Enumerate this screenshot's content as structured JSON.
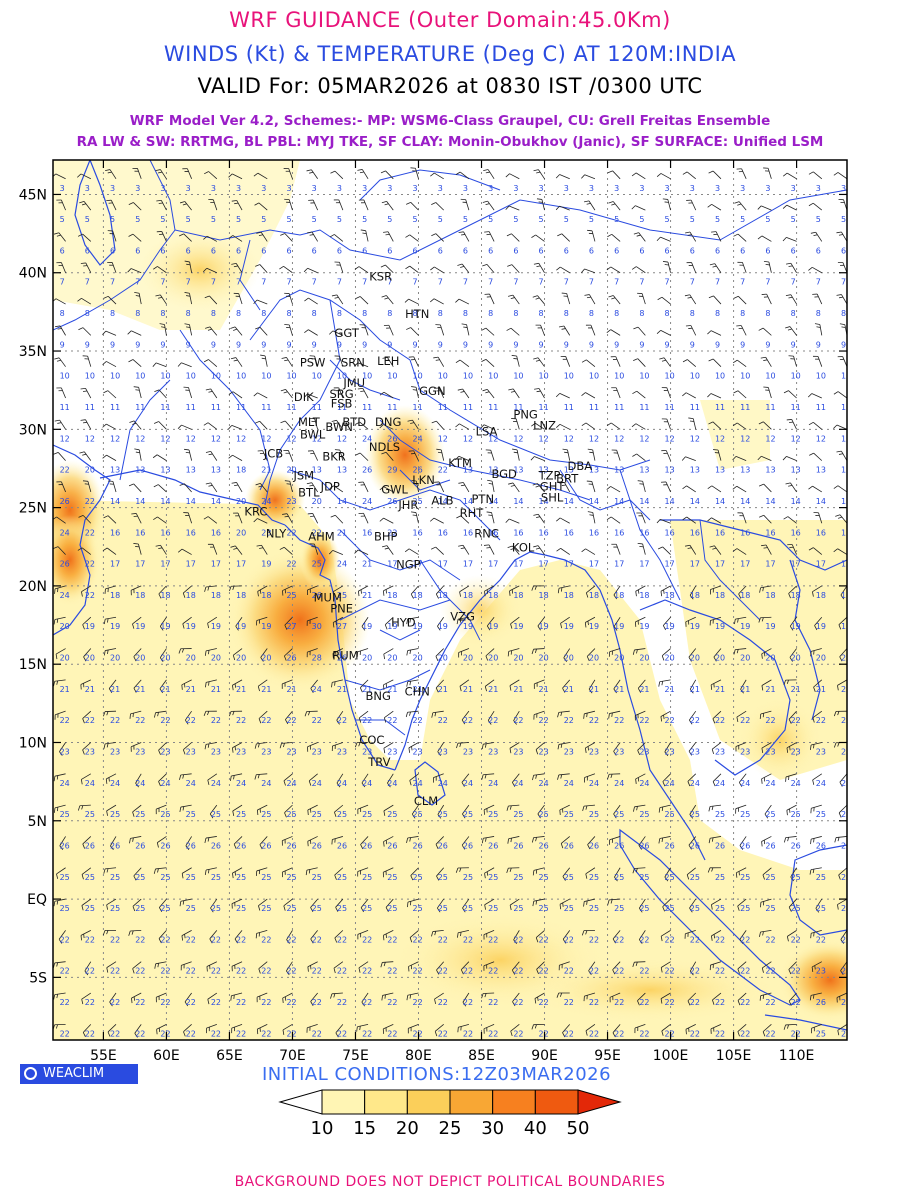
{
  "titles": {
    "line1": "WRF GUIDANCE (Outer Domain:45.0Km)",
    "line2": "WINDS (Kt) & TEMPERATURE (Deg C) AT 120M:INDIA",
    "line3": "VALID For: 05MAR2026 at 0830 IST /0300 UTC",
    "model_line1": "WRF Model Ver 4.2, Schemes:- MP: WSM6-Class Graupel, CU: Grell Freitas Ensemble",
    "model_line2": "RA LW & SW: RRTMG, BL PBL: MYJ TKE, SF CLAY: Monin-Obukhov (Janic), SF SURFACE: Unified LSM"
  },
  "map": {
    "lat_labels": [
      "45N",
      "40N",
      "35N",
      "30N",
      "25N",
      "20N",
      "15N",
      "10N",
      "5N",
      "EQ",
      "5S"
    ],
    "lon_labels": [
      "55E",
      "60E",
      "65E",
      "70E",
      "75E",
      "80E",
      "85E",
      "90E",
      "95E",
      "100E",
      "105E",
      "110E"
    ],
    "stations": [
      {
        "code": "KSR",
        "lon": 77.0,
        "lat": 39.5
      },
      {
        "code": "HTN",
        "lon": 79.9,
        "lat": 37.1
      },
      {
        "code": "GGT",
        "lon": 74.3,
        "lat": 35.9
      },
      {
        "code": "PSW",
        "lon": 71.6,
        "lat": 34.0
      },
      {
        "code": "SRN",
        "lon": 74.8,
        "lat": 34.0
      },
      {
        "code": "LEH",
        "lon": 77.6,
        "lat": 34.1
      },
      {
        "code": "JMU",
        "lon": 74.9,
        "lat": 32.7
      },
      {
        "code": "GGN",
        "lon": 81.1,
        "lat": 32.2
      },
      {
        "code": "DIK",
        "lon": 70.9,
        "lat": 31.8
      },
      {
        "code": "SRG",
        "lon": 73.9,
        "lat": 32.0
      },
      {
        "code": "FSB",
        "lon": 73.9,
        "lat": 31.4
      },
      {
        "code": "PNG",
        "lon": 88.5,
        "lat": 30.7
      },
      {
        "code": "MLT",
        "lon": 71.3,
        "lat": 30.2
      },
      {
        "code": "BTD",
        "lon": 74.9,
        "lat": 30.2
      },
      {
        "code": "DNG",
        "lon": 77.6,
        "lat": 30.2
      },
      {
        "code": "BWL",
        "lon": 71.6,
        "lat": 29.4
      },
      {
        "code": "BWN",
        "lon": 73.7,
        "lat": 29.9
      },
      {
        "code": "LSA",
        "lon": 85.4,
        "lat": 29.6
      },
      {
        "code": "LNZ",
        "lon": 90.0,
        "lat": 30.0
      },
      {
        "code": "JCB",
        "lon": 68.5,
        "lat": 28.2
      },
      {
        "code": "BKR",
        "lon": 73.3,
        "lat": 28.0
      },
      {
        "code": "NDLS",
        "lon": 77.3,
        "lat": 28.6
      },
      {
        "code": "KTM",
        "lon": 83.3,
        "lat": 27.6
      },
      {
        "code": "BGD",
        "lon": 86.8,
        "lat": 26.9
      },
      {
        "code": "TZP",
        "lon": 90.4,
        "lat": 26.8
      },
      {
        "code": "DBA",
        "lon": 92.8,
        "lat": 27.4
      },
      {
        "code": "JSM",
        "lon": 70.9,
        "lat": 26.8
      },
      {
        "code": "JDP",
        "lon": 73.0,
        "lat": 26.1
      },
      {
        "code": "LKN",
        "lon": 80.4,
        "lat": 26.5
      },
      {
        "code": "GHT",
        "lon": 90.6,
        "lat": 26.1
      },
      {
        "code": "BRT",
        "lon": 91.8,
        "lat": 26.6
      },
      {
        "code": "BTL",
        "lon": 71.3,
        "lat": 25.7
      },
      {
        "code": "GWL",
        "lon": 78.1,
        "lat": 25.9
      },
      {
        "code": "SHL",
        "lon": 90.6,
        "lat": 25.4
      },
      {
        "code": "ALB",
        "lon": 81.9,
        "lat": 25.2
      },
      {
        "code": "PTN",
        "lon": 85.1,
        "lat": 25.3
      },
      {
        "code": "JHR",
        "lon": 79.2,
        "lat": 24.9
      },
      {
        "code": "KRC",
        "lon": 67.1,
        "lat": 24.5
      },
      {
        "code": "RHT",
        "lon": 84.2,
        "lat": 24.4
      },
      {
        "code": "NLY",
        "lon": 68.7,
        "lat": 23.1
      },
      {
        "code": "AHM",
        "lon": 72.3,
        "lat": 22.9
      },
      {
        "code": "BHP",
        "lon": 77.4,
        "lat": 22.9
      },
      {
        "code": "RNC",
        "lon": 85.4,
        "lat": 23.1
      },
      {
        "code": "KOL",
        "lon": 88.3,
        "lat": 22.2
      },
      {
        "code": "NGP",
        "lon": 79.2,
        "lat": 21.1
      },
      {
        "code": "MUM",
        "lon": 72.8,
        "lat": 19.0
      },
      {
        "code": "PNE",
        "lon": 73.9,
        "lat": 18.3
      },
      {
        "code": "HYD",
        "lon": 78.8,
        "lat": 17.4
      },
      {
        "code": "VZG",
        "lon": 83.5,
        "lat": 17.8
      },
      {
        "code": "RUM",
        "lon": 74.2,
        "lat": 15.3
      },
      {
        "code": "BNG",
        "lon": 76.8,
        "lat": 12.7
      },
      {
        "code": "CHN",
        "lon": 79.9,
        "lat": 13.0
      },
      {
        "code": "COC",
        "lon": 76.3,
        "lat": 9.9
      },
      {
        "code": "TRV",
        "lon": 76.9,
        "lat": 8.5
      },
      {
        "code": "CLM",
        "lon": 80.6,
        "lat": 6.0
      }
    ],
    "temperature_hotspots": [
      {
        "lon": 72.0,
        "lat": 17.5,
        "value": 31
      },
      {
        "lon": 78.2,
        "lat": 27.8,
        "value": 30
      },
      {
        "lon": 51.8,
        "lat": 25.5,
        "value": 27
      },
      {
        "lon": 51.8,
        "lat": 21.5,
        "value": 27
      },
      {
        "lon": 72.5,
        "lat": 20.8,
        "value": 28
      },
      {
        "lon": 68.8,
        "lat": 25.5,
        "value": 26
      },
      {
        "lon": 113.5,
        "lat": -6.8,
        "value": 29
      }
    ]
  },
  "brand": {
    "label": "WEACLIM"
  },
  "initial_conditions": "INITIAL CONDITIONS:12Z03MAR2026",
  "colorbar": {
    "labels": [
      "10",
      "15",
      "20",
      "25",
      "30",
      "40",
      "50"
    ],
    "colors": [
      "#ffffff",
      "#fff5b4",
      "#ffe88a",
      "#fbcf5a",
      "#f8a734",
      "#f7801f",
      "#ef5a10",
      "#e32808"
    ]
  },
  "footer": "BACKGROUND DOES NOT DEPICT POLITICAL BOUNDARIES"
}
